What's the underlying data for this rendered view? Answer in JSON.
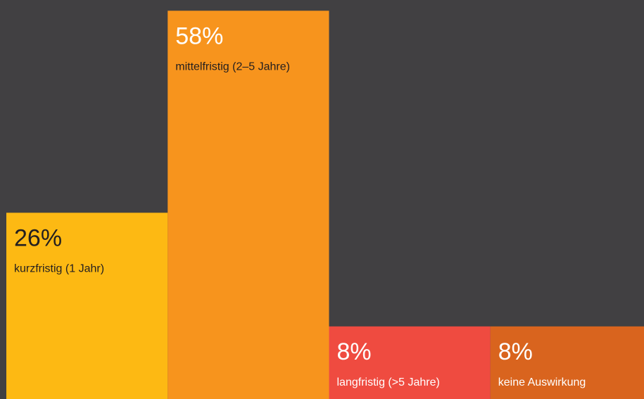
{
  "chart_data": {
    "type": "bar",
    "categories": [
      "kurzfristig (1 Jahr)",
      "mittelfristig (2–5 Jahre)",
      "langfristig (>5 Jahre)",
      "keine Auswirkung"
    ],
    "values": [
      26,
      58,
      8,
      8
    ],
    "value_labels": [
      "26%",
      "58%",
      "8%",
      "8%"
    ],
    "colors": [
      "#fdb913",
      "#f7941d",
      "#ef4b40",
      "#d9641e"
    ],
    "value_label_colors": [
      "#231f20",
      "#ffffff",
      "#ffffff",
      "#ffffff"
    ],
    "category_label_colors": [
      "#231f20",
      "#231f20",
      "#ffffff",
      "#ffffff"
    ],
    "ylim": [
      -3.5,
      59.7
    ]
  }
}
